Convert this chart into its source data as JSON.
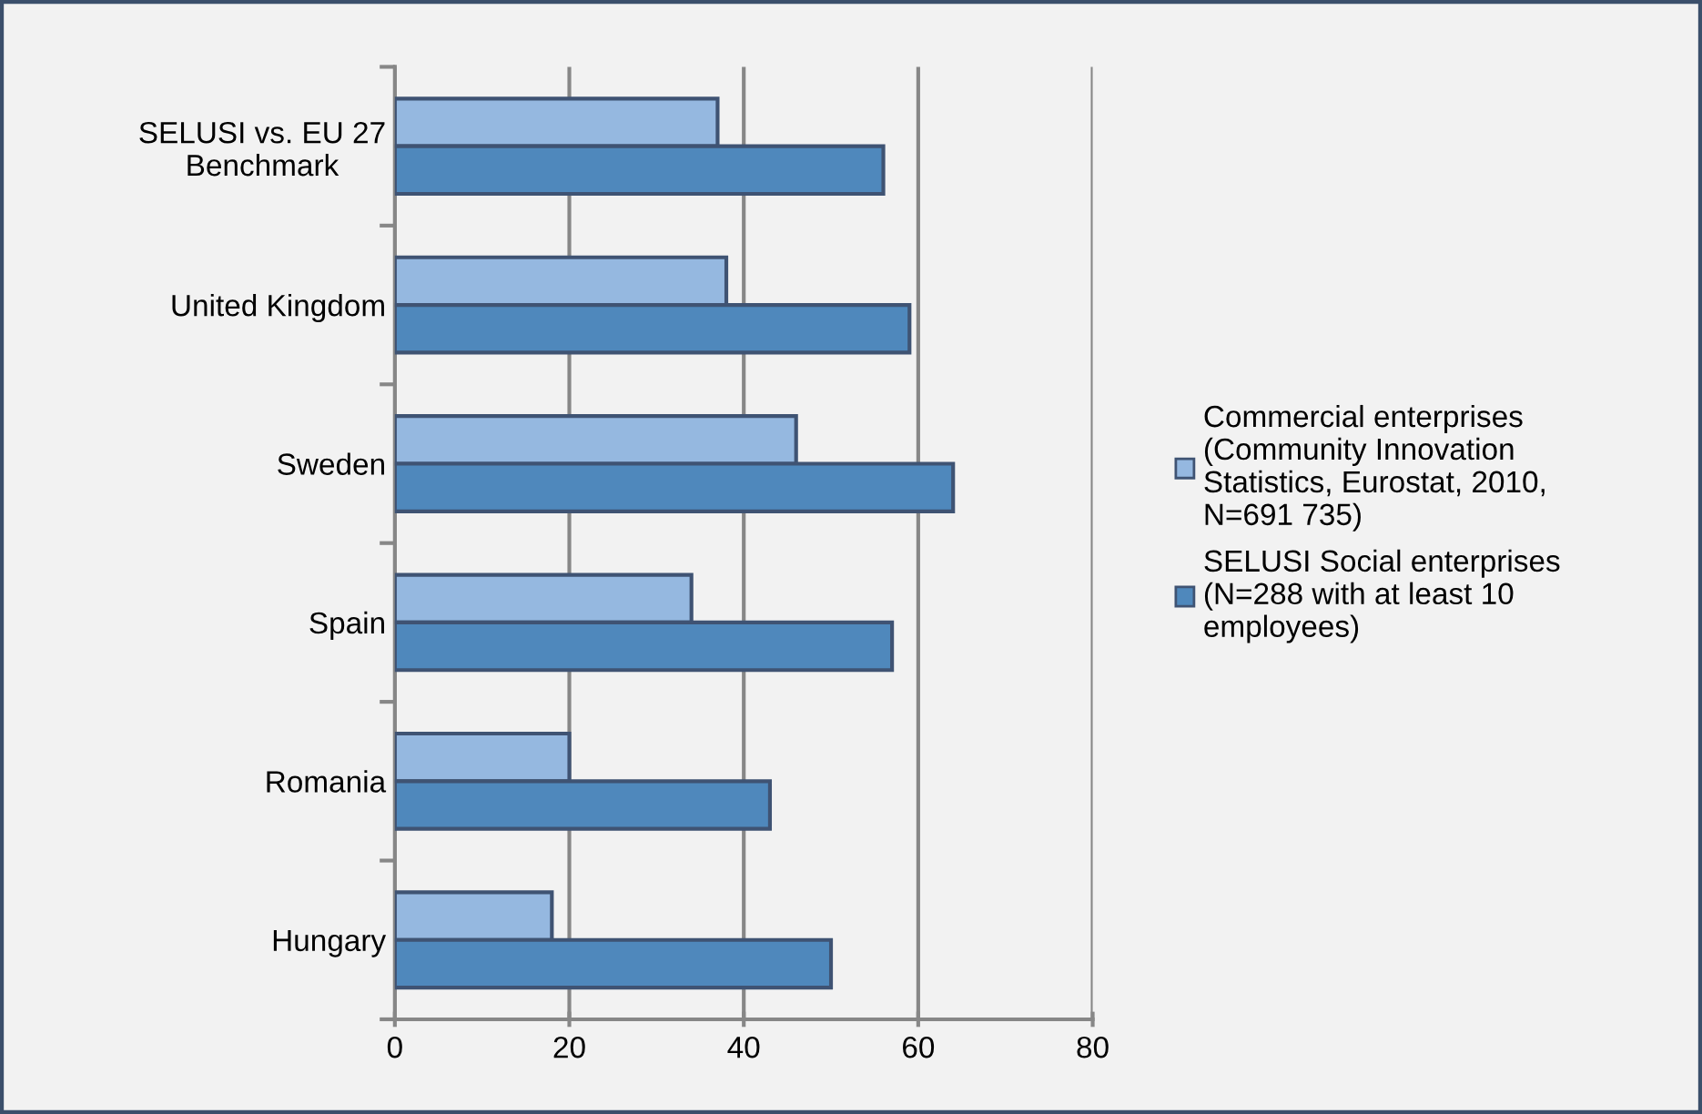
{
  "chart_data": {
    "type": "bar",
    "orientation": "horizontal",
    "categories": [
      "SELUSI vs. EU 27\nBenchmark",
      "United Kingdom",
      "Sweden",
      "Spain",
      "Romania",
      "Hungary"
    ],
    "series": [
      {
        "name": "Commercial enterprises\n(Community Innovation\nStatistics, Eurostat, 2010,\nN=691 735)",
        "color": "#95b8e0",
        "values": [
          37,
          38,
          46,
          34,
          20,
          18
        ]
      },
      {
        "name": "SELUSI Social enterprises\n(N=288 with at least 10\nemployees)",
        "color": "#4f88bc",
        "values": [
          56,
          59,
          64,
          57,
          43,
          50
        ]
      }
    ],
    "xlim": [
      0,
      80
    ],
    "xticks": [
      0,
      20,
      40,
      60,
      80
    ],
    "grid": "x",
    "legend": "right"
  }
}
